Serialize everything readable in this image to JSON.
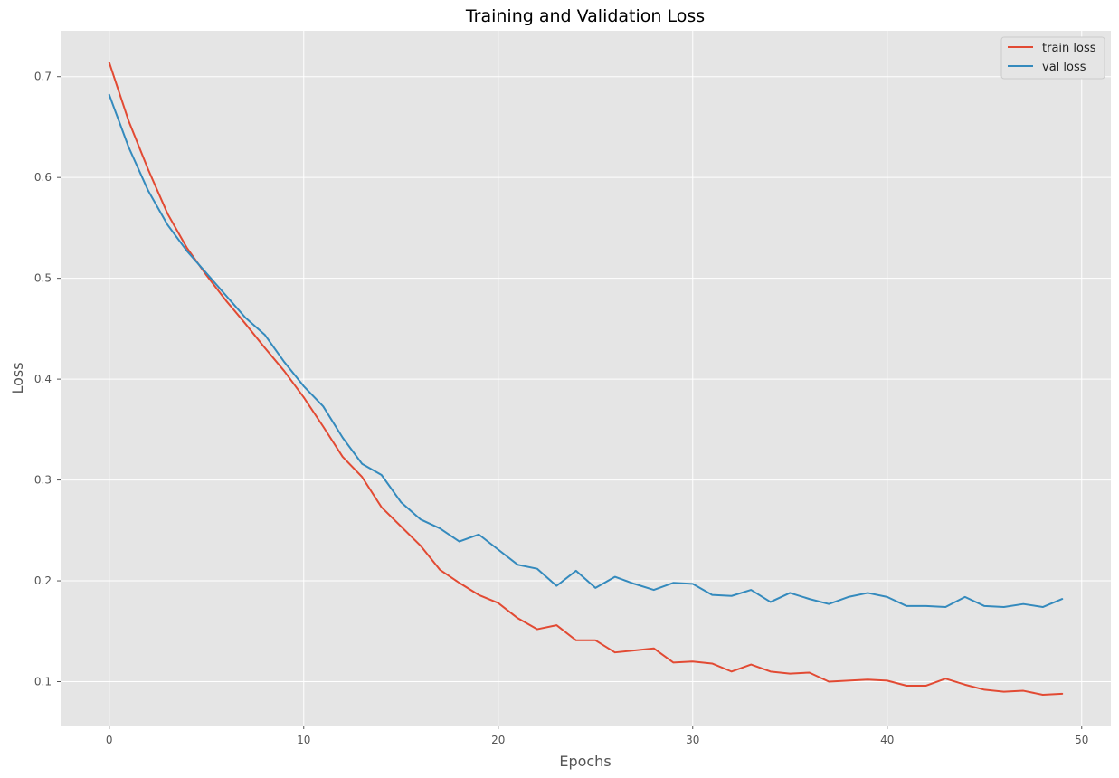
{
  "chart_data": {
    "type": "line",
    "title": "Training and Validation Loss",
    "xlabel": "Epochs",
    "ylabel": "Loss",
    "xlim": [
      -2.5,
      51.5
    ],
    "ylim": [
      0.0565,
      0.7455
    ],
    "xticks": [
      0,
      10,
      20,
      30,
      40,
      50
    ],
    "xtick_labels": [
      "0",
      "10",
      "20",
      "30",
      "40",
      "50"
    ],
    "yticks": [
      0.1,
      0.2,
      0.3,
      0.4,
      0.5,
      0.6,
      0.7
    ],
    "ytick_labels": [
      "0.1",
      "0.2",
      "0.3",
      "0.4",
      "0.5",
      "0.6",
      "0.7"
    ],
    "grid": true,
    "legend_position": "top-right",
    "x": [
      0,
      1,
      2,
      3,
      4,
      5,
      6,
      7,
      8,
      9,
      10,
      11,
      12,
      13,
      14,
      15,
      16,
      17,
      18,
      19,
      20,
      21,
      22,
      23,
      24,
      25,
      26,
      27,
      28,
      29,
      30,
      31,
      32,
      33,
      34,
      35,
      36,
      37,
      38,
      39,
      40,
      41,
      42,
      43,
      44,
      45,
      46,
      47,
      48,
      49
    ],
    "series": [
      {
        "name": "train loss",
        "color": "#E24A33",
        "values": [
          0.714,
          0.656,
          0.608,
          0.564,
          0.53,
          0.503,
          0.478,
          0.455,
          0.431,
          0.408,
          0.382,
          0.353,
          0.323,
          0.303,
          0.273,
          0.254,
          0.235,
          0.211,
          0.198,
          0.186,
          0.178,
          0.163,
          0.152,
          0.156,
          0.141,
          0.141,
          0.129,
          0.131,
          0.133,
          0.119,
          0.12,
          0.118,
          0.11,
          0.117,
          0.11,
          0.108,
          0.109,
          0.1,
          0.101,
          0.102,
          0.101,
          0.096,
          0.096,
          0.103,
          0.097,
          0.092,
          0.09,
          0.091,
          0.087,
          0.088
        ]
      },
      {
        "name": "val loss",
        "color": "#348ABD",
        "values": [
          0.682,
          0.63,
          0.587,
          0.553,
          0.527,
          0.505,
          0.483,
          0.461,
          0.444,
          0.417,
          0.393,
          0.373,
          0.342,
          0.316,
          0.305,
          0.278,
          0.261,
          0.252,
          0.239,
          0.246,
          0.231,
          0.216,
          0.212,
          0.195,
          0.21,
          0.193,
          0.204,
          0.197,
          0.191,
          0.198,
          0.197,
          0.186,
          0.185,
          0.191,
          0.179,
          0.188,
          0.182,
          0.177,
          0.184,
          0.188,
          0.184,
          0.175,
          0.175,
          0.174,
          0.184,
          0.175,
          0.174,
          0.177,
          0.174,
          0.182
        ]
      }
    ]
  }
}
